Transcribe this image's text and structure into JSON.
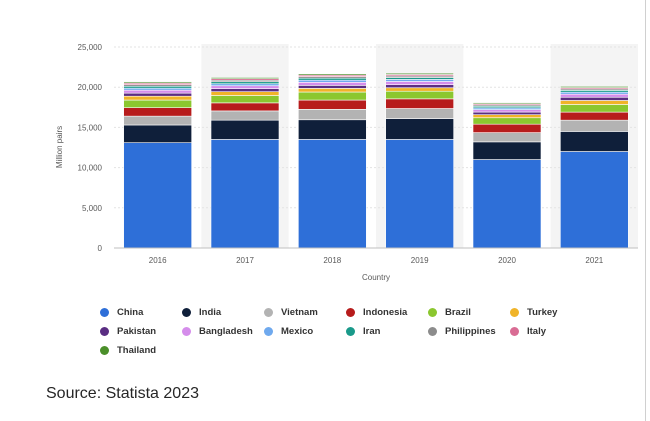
{
  "chart_data": {
    "type": "bar",
    "stacked": true,
    "categories": [
      "2016",
      "2017",
      "2018",
      "2019",
      "2020",
      "2021"
    ],
    "xlabel": "Country",
    "ylabel": "Million pairs",
    "ylim": [
      0,
      25000
    ],
    "yticks": [
      0,
      5000,
      10000,
      15000,
      20000,
      25000
    ],
    "ytick_labels": [
      "0",
      "5,000",
      "10,000",
      "15,000",
      "20,000",
      "25,000"
    ],
    "grid": true,
    "legend_position": "bottom",
    "series": [
      {
        "name": "China",
        "color": "#2E6FD8",
        "values": [
          13100,
          13500,
          13500,
          13500,
          11000,
          12000
        ]
      },
      {
        "name": "India",
        "color": "#0F1F3A",
        "values": [
          2200,
          2400,
          2450,
          2600,
          2200,
          2500
        ]
      },
      {
        "name": "Vietnam",
        "color": "#B3B3B3",
        "values": [
          1100,
          1150,
          1300,
          1250,
          1150,
          1400
        ]
      },
      {
        "name": "Indonesia",
        "color": "#B71C1C",
        "values": [
          1050,
          1000,
          1150,
          1200,
          1050,
          1000
        ]
      },
      {
        "name": "Brazil",
        "color": "#8BC72F",
        "values": [
          950,
          920,
          1000,
          950,
          800,
          950
        ]
      },
      {
        "name": "Turkey",
        "color": "#F0B429",
        "values": [
          480,
          470,
          450,
          430,
          380,
          500
        ]
      },
      {
        "name": "Pakistan",
        "color": "#5A2D82",
        "values": [
          380,
          380,
          380,
          380,
          330,
          400
        ]
      },
      {
        "name": "Bangladesh",
        "color": "#D58DEB",
        "values": [
          370,
          360,
          380,
          400,
          300,
          380
        ]
      },
      {
        "name": "Mexico",
        "color": "#6FA9EE",
        "values": [
          250,
          250,
          260,
          260,
          220,
          250
        ]
      },
      {
        "name": "Iran",
        "color": "#1A9A8A",
        "values": [
          240,
          250,
          250,
          230,
          200,
          230
        ]
      },
      {
        "name": "Philippines",
        "color": "#8C8C8C",
        "values": [
          190,
          190,
          200,
          200,
          170,
          180
        ]
      },
      {
        "name": "Italy",
        "color": "#D96C94",
        "values": [
          200,
          190,
          190,
          180,
          140,
          160
        ]
      },
      {
        "name": "Thailand",
        "color": "#4B8F2A",
        "values": [
          150,
          150,
          160,
          160,
          140,
          150
        ]
      }
    ]
  },
  "source_text": "Source: Statista 2023"
}
